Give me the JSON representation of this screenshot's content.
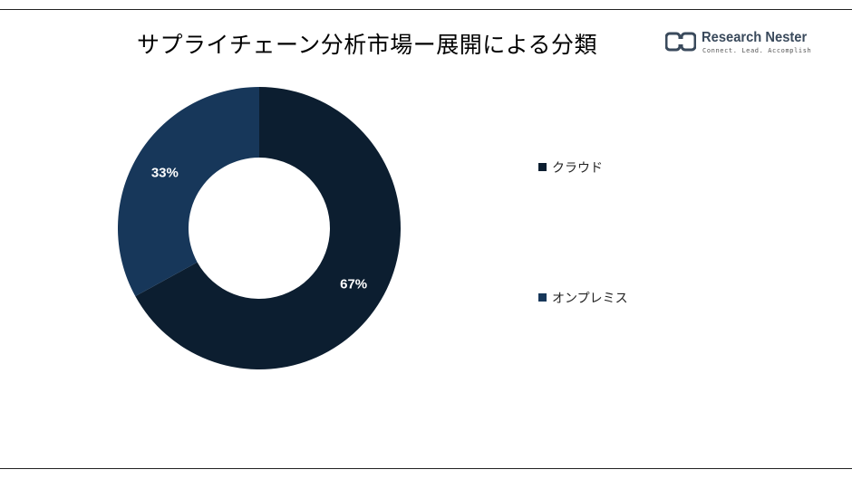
{
  "header": {
    "title": "サプライチェーン分析市場ー展開による分類"
  },
  "logo": {
    "name": "Research Nester",
    "tagline": "Connect. Lead. Accomplish"
  },
  "chart_data": {
    "type": "pie",
    "donut": true,
    "categories": [
      "クラウド",
      "オンプレミス"
    ],
    "values": [
      67,
      33
    ],
    "labels": [
      "67%",
      "33%"
    ],
    "colors": [
      "#0c1e30",
      "#17375a"
    ],
    "legend": "right"
  }
}
